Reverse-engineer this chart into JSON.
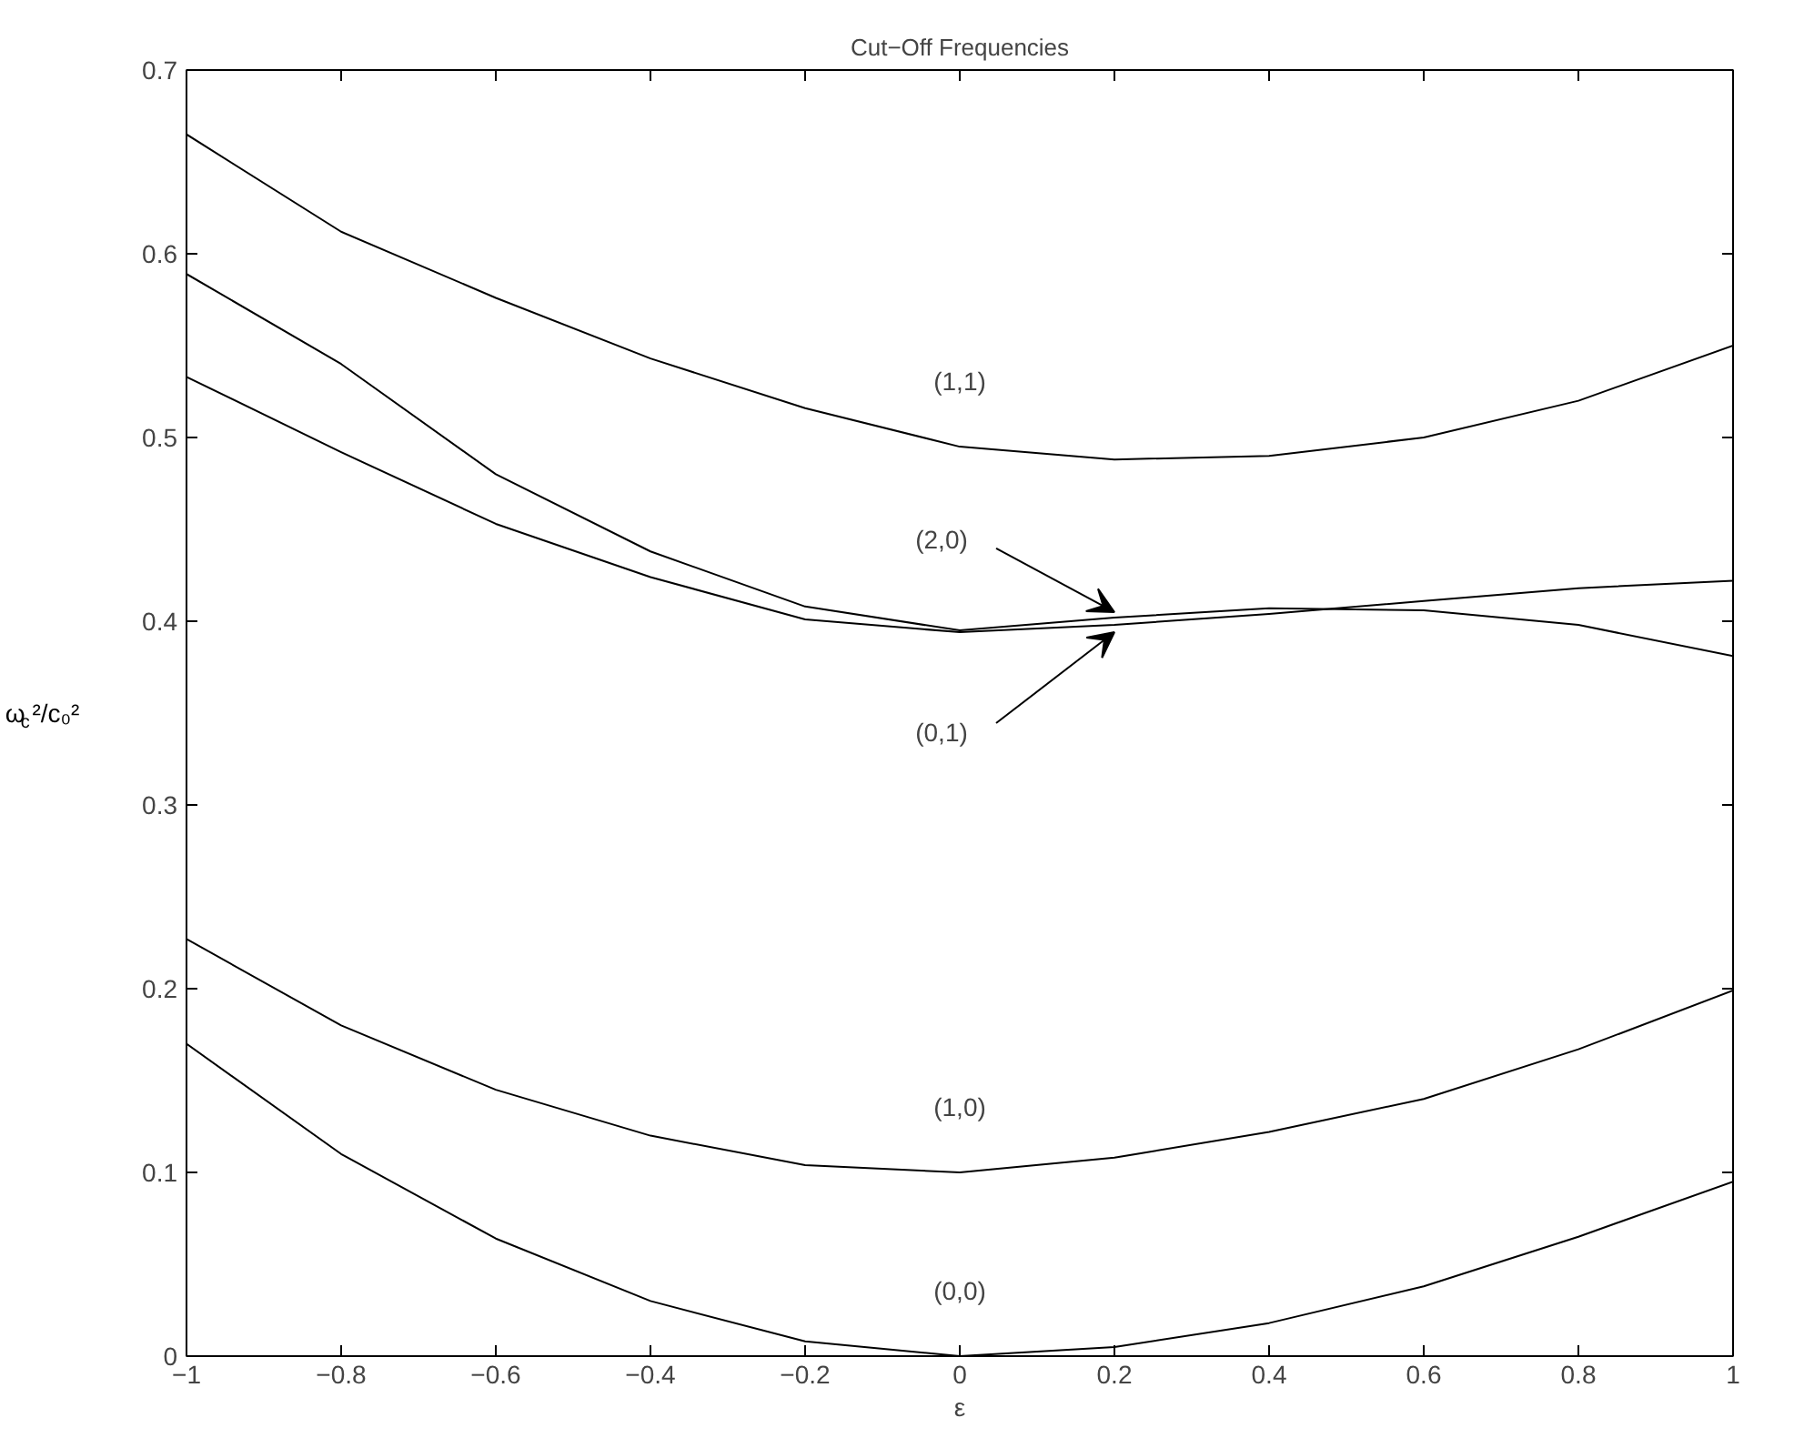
{
  "chart_data": {
    "type": "line",
    "title": "Cut−Off Frequencies",
    "xlabel": "ε",
    "ylabel": "ω$_{c}$²/c₀²",
    "x": [
      -1,
      -0.8,
      -0.6,
      -0.4,
      -0.2,
      0,
      0.2,
      0.4,
      0.6,
      0.8,
      1
    ],
    "series": [
      {
        "name": "(1,1)",
        "color": "#000000",
        "values": [
          0.665,
          0.612,
          0.576,
          0.543,
          0.516,
          0.495,
          0.488,
          0.49,
          0.5,
          0.52,
          0.55
        ]
      },
      {
        "name": "(2,0)",
        "color": "#000000",
        "values": [
          0.589,
          0.54,
          0.48,
          0.438,
          0.408,
          0.395,
          0.402,
          0.407,
          0.406,
          0.398,
          0.381
        ]
      },
      {
        "name": "(0,1)",
        "color": "#000000",
        "values": [
          0.533,
          0.492,
          0.453,
          0.424,
          0.401,
          0.394,
          0.398,
          0.404,
          0.411,
          0.418,
          0.422
        ]
      },
      {
        "name": "(1,0)",
        "color": "#000000",
        "values": [
          0.227,
          0.18,
          0.145,
          0.12,
          0.104,
          0.1,
          0.108,
          0.122,
          0.14,
          0.167,
          0.199
        ]
      },
      {
        "name": "(0,0)",
        "color": "#000000",
        "values": [
          0.17,
          0.11,
          0.064,
          0.03,
          0.008,
          0,
          0.005,
          0.018,
          0.038,
          0.065,
          0.095
        ]
      }
    ],
    "xlim": [
      -1,
      1
    ],
    "ylim": [
      0,
      0.7
    ],
    "xticks": [
      -1,
      -0.8,
      -0.6,
      -0.4,
      -0.2,
      0,
      0.2,
      0.4,
      0.6,
      0.8,
      1
    ],
    "yticks": [
      0,
      0.1,
      0.2,
      0.3,
      0.4,
      0.5,
      0.6,
      0.7
    ],
    "grid": false,
    "legend": false,
    "marker": "none",
    "line_style": "solid"
  }
}
